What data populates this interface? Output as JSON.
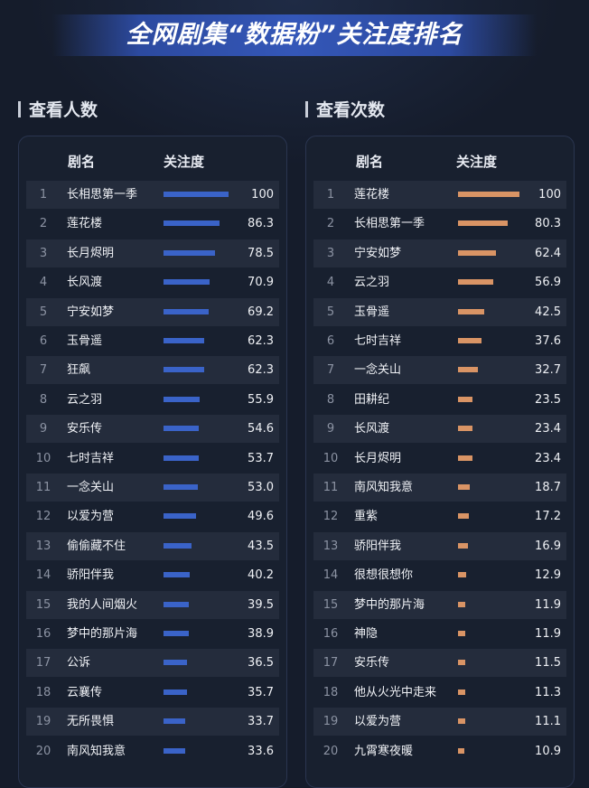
{
  "title": "全网剧集“数据粉”关注度排名",
  "columns": {
    "name": "剧名",
    "score": "关注度"
  },
  "colors": {
    "viewers_bar": "#3a63c8",
    "views_bar": "#d99465"
  },
  "chart_data": [
    {
      "type": "bar",
      "title": "查看人数",
      "xlabel": "剧名",
      "ylabel": "关注度",
      "ylim": [
        0,
        100
      ],
      "series": [
        {
          "name": "关注度",
          "values": [
            100,
            86.3,
            78.5,
            70.9,
            69.2,
            62.3,
            62.3,
            55.9,
            54.6,
            53.7,
            53.0,
            49.6,
            43.5,
            40.2,
            39.5,
            38.9,
            36.5,
            35.7,
            33.7,
            33.6
          ]
        }
      ],
      "ranks": [
        "1",
        "2",
        "3",
        "4",
        "5",
        "6",
        "7",
        "8",
        "9",
        "10",
        "11",
        "12",
        "13",
        "14",
        "15",
        "16",
        "17",
        "18",
        "19",
        "20"
      ],
      "categories": [
        "长相思第一季",
        "莲花楼",
        "长月烬明",
        "长风渡",
        "宁安如梦",
        "玉骨遥",
        "狂飙",
        "云之羽",
        "安乐传",
        "七时吉祥",
        "一念关山",
        "以爱为营",
        "偷偷藏不住",
        "骄阳伴我",
        "我的人间烟火",
        "梦中的那片海",
        "公诉",
        "云襄传",
        "无所畏惧",
        "南风知我意"
      ],
      "labels": [
        "100",
        "86.3",
        "78.5",
        "70.9",
        "69.2",
        "62.3",
        "62.3",
        "55.9",
        "54.6",
        "53.7",
        "53.0",
        "49.6",
        "43.5",
        "40.2",
        "39.5",
        "38.9",
        "36.5",
        "35.7",
        "33.7",
        "33.6"
      ]
    },
    {
      "type": "bar",
      "title": "查看次数",
      "xlabel": "剧名",
      "ylabel": "关注度",
      "ylim": [
        0,
        100
      ],
      "series": [
        {
          "name": "关注度",
          "values": [
            100,
            80.3,
            62.4,
            56.9,
            42.5,
            37.6,
            32.7,
            23.5,
            23.4,
            23.4,
            18.7,
            17.2,
            16.9,
            12.9,
            11.9,
            11.9,
            11.5,
            11.3,
            11.1,
            10.9
          ]
        }
      ],
      "ranks": [
        "1",
        "2",
        "3",
        "4",
        "5",
        "6",
        "7",
        "8",
        "9",
        "10",
        "11",
        "12",
        "13",
        "14",
        "15",
        "16",
        "17",
        "18",
        "19",
        "20"
      ],
      "categories": [
        "莲花楼",
        "长相思第一季",
        "宁安如梦",
        "云之羽",
        "玉骨遥",
        "七时吉祥",
        "一念关山",
        "田耕纪",
        "长风渡",
        "长月烬明",
        "南风知我意",
        "重紫",
        "骄阳伴我",
        "很想很想你",
        "梦中的那片海",
        "神隐",
        "安乐传",
        "他从火光中走来",
        "以爱为营",
        "九霄寒夜暖"
      ],
      "labels": [
        "100",
        "80.3",
        "62.4",
        "56.9",
        "42.5",
        "37.6",
        "32.7",
        "23.5",
        "23.4",
        "23.4",
        "18.7",
        "17.2",
        "16.9",
        "12.9",
        "11.9",
        "11.9",
        "11.5",
        "11.3",
        "11.1",
        "10.9"
      ]
    }
  ]
}
